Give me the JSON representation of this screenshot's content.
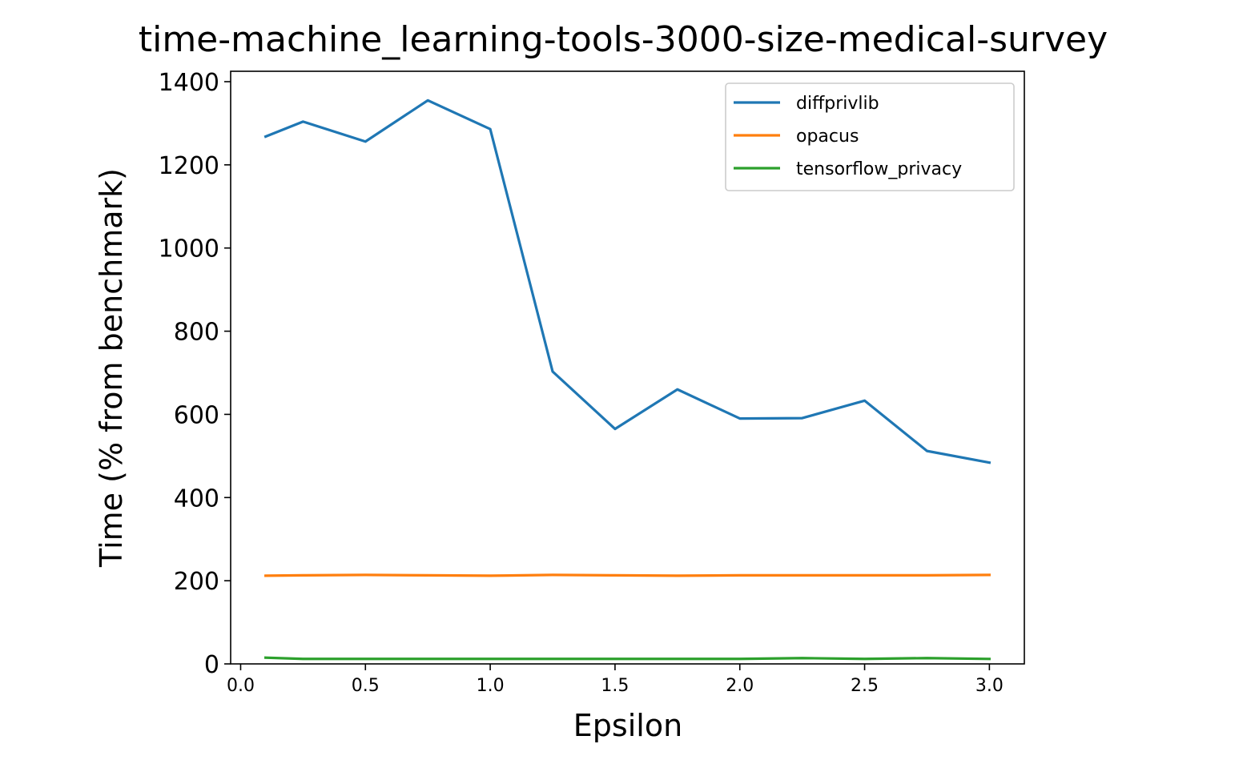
{
  "chart_data": {
    "type": "line",
    "title": "time-machine_learning-tools-3000-size-medical-survey",
    "xlabel": "Epsilon",
    "ylabel": "Time (% from benchmark)",
    "xlim": [
      -0.04,
      3.14
    ],
    "ylim": [
      0,
      1425
    ],
    "xticks": [
      0.0,
      0.5,
      1.0,
      1.5,
      2.0,
      2.5,
      3.0
    ],
    "xtick_labels": [
      "0.0",
      "0.5",
      "1.0",
      "1.5",
      "2.0",
      "2.5",
      "3.0"
    ],
    "yticks": [
      0,
      200,
      400,
      600,
      800,
      1000,
      1200,
      1400
    ],
    "ytick_labels": [
      "0",
      "200",
      "400",
      "600",
      "800",
      "1000",
      "1200",
      "1400"
    ],
    "grid": false,
    "legend_position": "top-right",
    "x": [
      0.1,
      0.25,
      0.5,
      0.75,
      1.0,
      1.25,
      1.5,
      1.75,
      2.0,
      2.25,
      2.5,
      2.75,
      3.0
    ],
    "series": [
      {
        "name": "diffprivlib",
        "color": "#1f77b4",
        "values": [
          1268,
          1304,
          1256,
          1355,
          1286,
          703,
          565,
          660,
          590,
          591,
          633,
          512,
          484
        ]
      },
      {
        "name": "opacus",
        "color": "#ff7f0e",
        "values": [
          212,
          213,
          214,
          213,
          212,
          214,
          213,
          212,
          213,
          213,
          213,
          213,
          214
        ]
      },
      {
        "name": "tensorflow_privacy",
        "color": "#2ca02c",
        "values": [
          15,
          12,
          12,
          12,
          12,
          12,
          12,
          12,
          12,
          14,
          12,
          14,
          12
        ]
      }
    ]
  }
}
